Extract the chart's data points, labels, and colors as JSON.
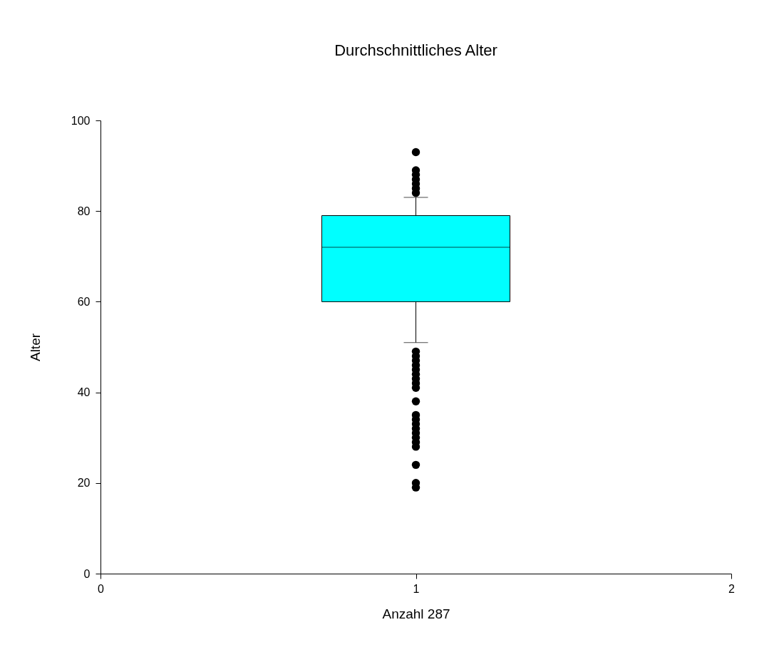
{
  "chart_data": {
    "type": "box",
    "title": "Durchschnittliches Alter",
    "xlabel": "Anzahl 287",
    "ylabel": "Alter",
    "categories": [
      "0",
      "1",
      "2"
    ],
    "ylim": [
      0,
      100
    ],
    "yticks": [
      0,
      20,
      40,
      60,
      80,
      100
    ],
    "grid": false,
    "series": [
      {
        "color": "#00ffff",
        "boxes": [
          null,
          {
            "low": 51,
            "q1": 60,
            "median": 72,
            "q3": 79,
            "high": 83,
            "outliers": [
              93,
              89,
              88,
              87,
              86,
              85,
              84,
              49,
              48,
              47,
              46,
              45,
              44,
              43,
              42,
              41,
              38,
              35,
              34,
              33,
              32,
              31,
              30,
              29,
              28,
              24,
              20,
              19
            ]
          },
          null
        ]
      }
    ]
  }
}
